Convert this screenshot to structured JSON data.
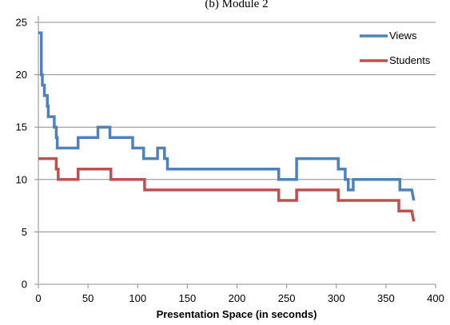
{
  "chart_data": {
    "type": "line",
    "title": "(b) Module 2",
    "xlabel": "Presentation Space (in seconds)",
    "ylabel": "",
    "xlim": [
      0,
      400
    ],
    "ylim": [
      0,
      25
    ],
    "x_ticks": [
      "0",
      "50",
      "100",
      "150",
      "200",
      "250",
      "300",
      "350",
      "400"
    ],
    "y_ticks": [
      "0",
      "5",
      "10",
      "15",
      "20",
      "25"
    ],
    "grid": "horizontal",
    "legend_position": "top-right",
    "series": [
      {
        "name": "Views",
        "color": "#4f81bd",
        "points": [
          [
            0,
            24
          ],
          [
            3,
            24
          ],
          [
            3,
            20
          ],
          [
            4,
            20
          ],
          [
            4,
            19
          ],
          [
            6,
            19
          ],
          [
            6,
            18
          ],
          [
            9,
            18
          ],
          [
            9,
            17
          ],
          [
            10,
            17
          ],
          [
            10,
            16
          ],
          [
            16,
            16
          ],
          [
            16,
            15
          ],
          [
            18,
            15
          ],
          [
            18,
            14
          ],
          [
            19,
            14
          ],
          [
            19,
            13
          ],
          [
            40,
            13
          ],
          [
            40,
            14
          ],
          [
            60,
            14
          ],
          [
            60,
            15
          ],
          [
            72,
            15
          ],
          [
            72,
            14
          ],
          [
            95,
            14
          ],
          [
            95,
            13
          ],
          [
            106,
            13
          ],
          [
            106,
            12
          ],
          [
            120,
            12
          ],
          [
            120,
            13
          ],
          [
            127,
            13
          ],
          [
            127,
            12
          ],
          [
            130,
            12
          ],
          [
            130,
            11
          ],
          [
            242,
            11
          ],
          [
            242,
            10
          ],
          [
            260,
            10
          ],
          [
            260,
            12
          ],
          [
            302,
            12
          ],
          [
            302,
            11
          ],
          [
            309,
            11
          ],
          [
            309,
            10
          ],
          [
            312,
            10
          ],
          [
            312,
            9
          ],
          [
            317,
            9
          ],
          [
            317,
            10
          ],
          [
            364,
            10
          ],
          [
            364,
            9
          ],
          [
            376,
            9
          ],
          [
            378,
            8
          ]
        ]
      },
      {
        "name": "Students",
        "color": "#c0504d",
        "points": [
          [
            0,
            12
          ],
          [
            18,
            12
          ],
          [
            18,
            11
          ],
          [
            20,
            11
          ],
          [
            20,
            10
          ],
          [
            40,
            10
          ],
          [
            40,
            11
          ],
          [
            73,
            11
          ],
          [
            73,
            10
          ],
          [
            107,
            10
          ],
          [
            107,
            9
          ],
          [
            242,
            9
          ],
          [
            242,
            8
          ],
          [
            260,
            8
          ],
          [
            260,
            9
          ],
          [
            302,
            9
          ],
          [
            302,
            8
          ],
          [
            363,
            8
          ],
          [
            363,
            7
          ],
          [
            376,
            7
          ],
          [
            378,
            6
          ]
        ]
      }
    ]
  }
}
